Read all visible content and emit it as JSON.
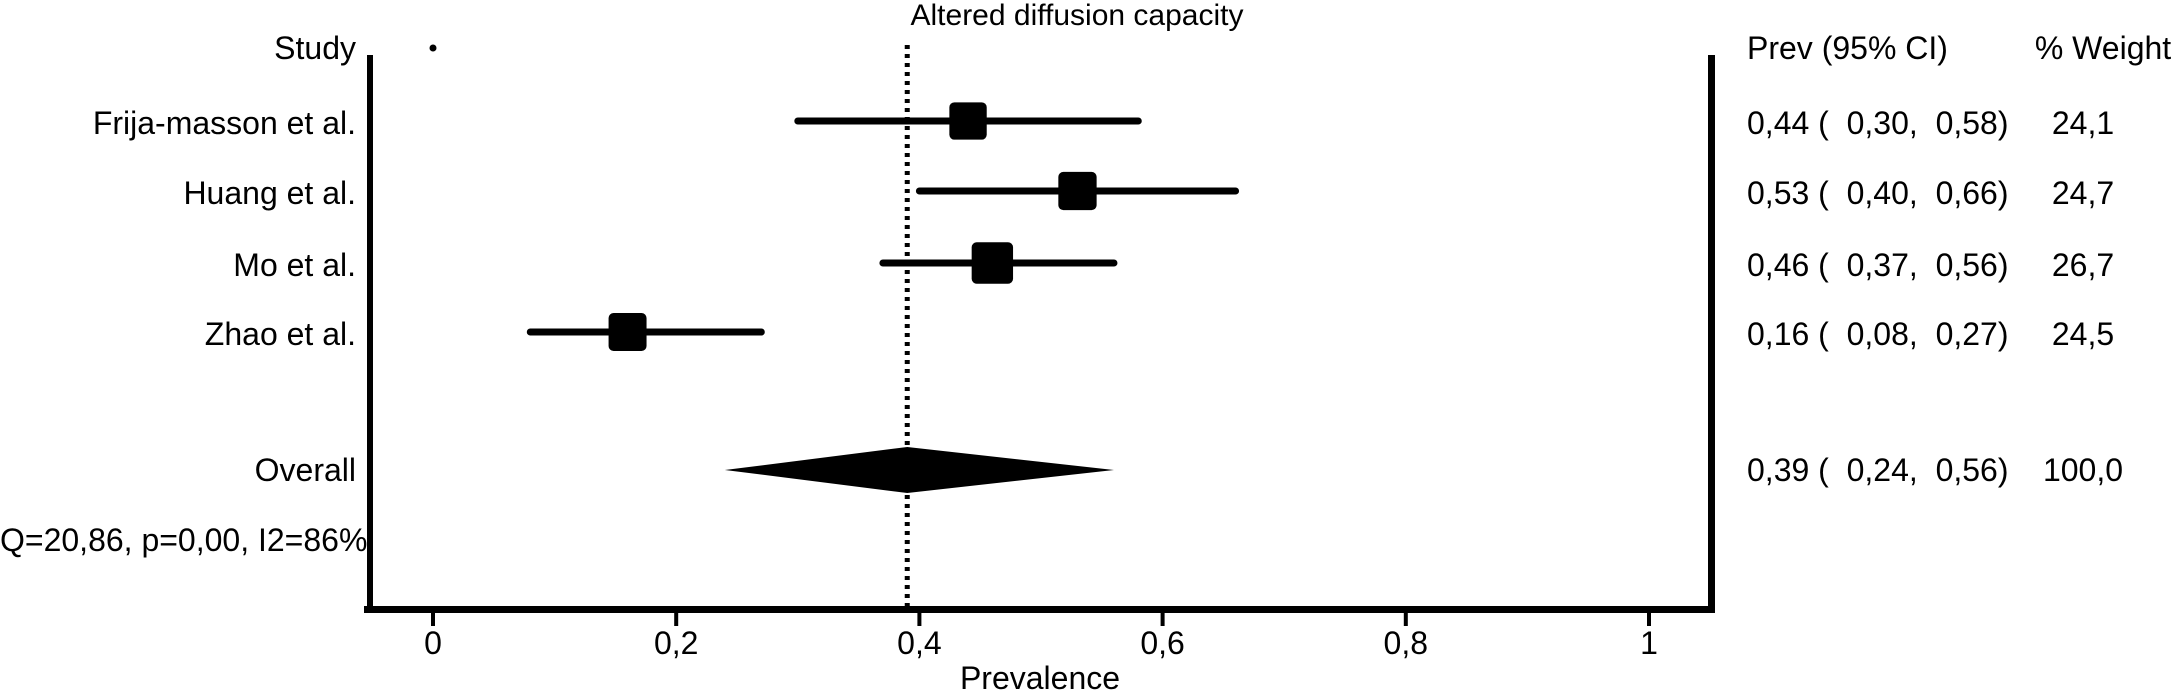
{
  "title": "Altered diffusion capacity",
  "columns": {
    "study_header": "Study",
    "prev_header": "Prev (95% CI)",
    "weight_header": "% Weight"
  },
  "chart_data": {
    "type": "forest",
    "title": "Altered diffusion capacity",
    "xlabel": "Prevalence",
    "xlim": [
      -0.05,
      1.05
    ],
    "grid": false,
    "dashed_reference_value": 0.39,
    "x_ticks": [
      {
        "value": 0.0,
        "label": "0"
      },
      {
        "value": 0.2,
        "label": "0,2"
      },
      {
        "value": 0.4,
        "label": "0,4"
      },
      {
        "value": 0.6,
        "label": "0,6"
      },
      {
        "value": 0.8,
        "label": "0,8"
      },
      {
        "value": 1.0,
        "label": "1"
      }
    ],
    "studies": [
      {
        "label": "Frija-masson et al.",
        "prev": 0.44,
        "ci_low": 0.3,
        "ci_high": 0.58,
        "weight": 24.1,
        "prev_text": "0,44 (  0,30,  0,58)",
        "weight_text": "24,1"
      },
      {
        "label": "Huang et al.",
        "prev": 0.53,
        "ci_low": 0.4,
        "ci_high": 0.66,
        "weight": 24.7,
        "prev_text": "0,53 (  0,40,  0,66)",
        "weight_text": "24,7"
      },
      {
        "label": "Mo et al.",
        "prev": 0.46,
        "ci_low": 0.37,
        "ci_high": 0.56,
        "weight": 26.7,
        "prev_text": "0,46 (  0,37,  0,56)",
        "weight_text": "26,7"
      },
      {
        "label": "Zhao et al.",
        "prev": 0.16,
        "ci_low": 0.08,
        "ci_high": 0.27,
        "weight": 24.5,
        "prev_text": "0,16 (  0,08,  0,27)",
        "weight_text": "24,5"
      }
    ],
    "overall": {
      "label": "Overall",
      "prev": 0.39,
      "ci_low": 0.24,
      "ci_high": 0.56,
      "weight": 100.0,
      "prev_text": "0,39 (  0,24,  0,56)",
      "weight_text": "100,0"
    },
    "heterogeneity_text": "Q=20,86, p=0,00, I2=86%",
    "artifact_dot": {
      "value": 0.0,
      "row": "header"
    },
    "colors": {
      "ink": "#000000",
      "background": "#ffffff"
    }
  }
}
